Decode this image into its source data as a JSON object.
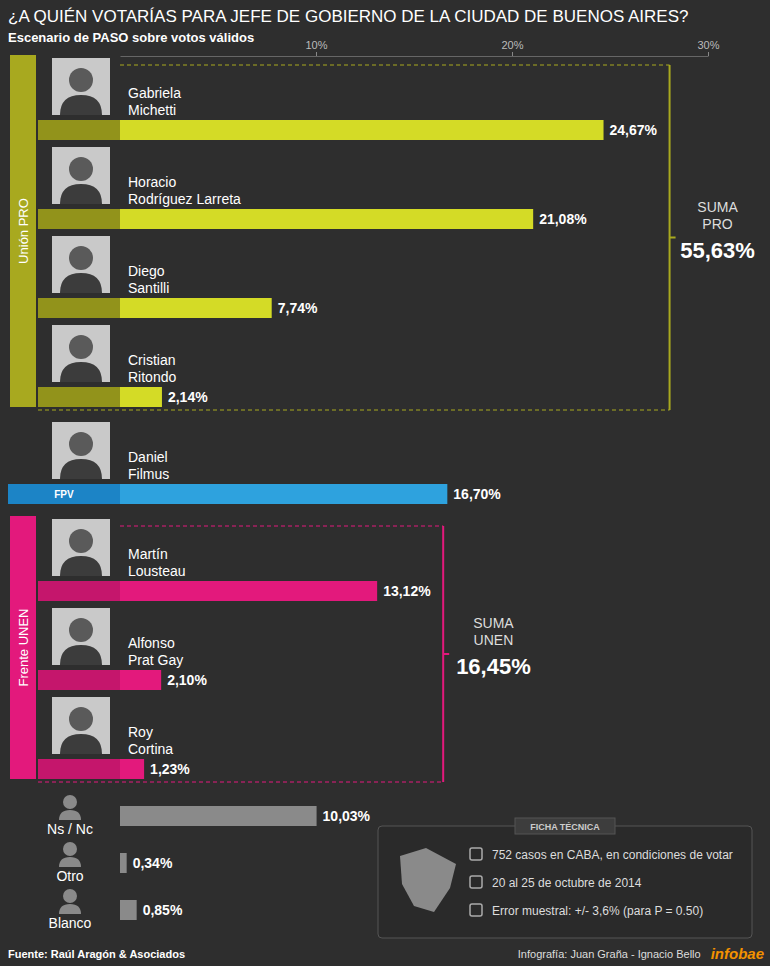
{
  "chart_data": {
    "type": "bar",
    "orientation": "horizontal",
    "title": "¿A QUIÉN VOTARÍAS PARA JEFE DE GOBIERNO DE LA CIUDAD DE BUENOS AIRES?",
    "subtitle": "Escenario de PASO sobre votos válidos",
    "categories": [
      "Gabriela Michetti",
      "Horacio Rodríguez Larreta",
      "Diego Santilli",
      "Cristian Ritondo",
      "Daniel Filmus",
      "Martín Lousteau",
      "Alfonso Prat Gay",
      "Roy Cortina",
      "Ns / Nc",
      "Otro",
      "Blanco"
    ],
    "values": [
      24.67,
      21.08,
      7.74,
      2.14,
      16.7,
      13.12,
      2.1,
      1.23,
      10.03,
      0.34,
      0.85
    ],
    "value_labels": [
      "24,67%",
      "21,08%",
      "7,74%",
      "2,14%",
      "16,70%",
      "13,12%",
      "2,10%",
      "1,23%",
      "10,03%",
      "0,34%",
      "0,85%"
    ],
    "colors": [
      "#d4db26",
      "#d4db26",
      "#d4db26",
      "#d4db26",
      "#2ea2de",
      "#e3197c",
      "#e3197c",
      "#e3197c",
      "#8a8a8a",
      "#8a8a8a",
      "#8a8a8a"
    ],
    "data_labels": true,
    "grid": false,
    "xlim": [
      0,
      30
    ],
    "xticks": [
      {
        "value": 10,
        "label": "10%"
      },
      {
        "value": 20,
        "label": "20%"
      },
      {
        "value": 30,
        "label": "30%"
      }
    ],
    "groups": [
      {
        "name": "Unión PRO",
        "color": "#a8a91f",
        "categories": [
          "Gabriela Michetti",
          "Horacio Rodríguez Larreta",
          "Diego Santilli",
          "Cristian Ritondo"
        ],
        "sum_title": "SUMA PRO",
        "total": 55.63,
        "total_label": "55,63%"
      },
      {
        "name": "FPV",
        "color": "#1c84c6",
        "categories": [
          "Daniel Filmus"
        ]
      },
      {
        "name": "Frente UNEN",
        "color": "#e3197c",
        "categories": [
          "Martín Lousteau",
          "Alfonso Prat Gay",
          "Roy Cortina"
        ],
        "sum_title": "SUMA UNEN",
        "total": 16.45,
        "total_label": "16,45%"
      }
    ],
    "annotations": {
      "ficha_tecnica": {
        "title": "FICHA TÉCNICA",
        "items": [
          "752 casos en CABA, en condiciones de votar",
          "20 al 25 de octubre de 2014",
          "Error muestral: +/- 3,6% (para P = 0.50)"
        ]
      },
      "source": "Fuente: Raúl Aragón & Asociados",
      "credit": "Infografía: Juan Graña - Ignacio Bello",
      "brand": "infobae"
    }
  }
}
